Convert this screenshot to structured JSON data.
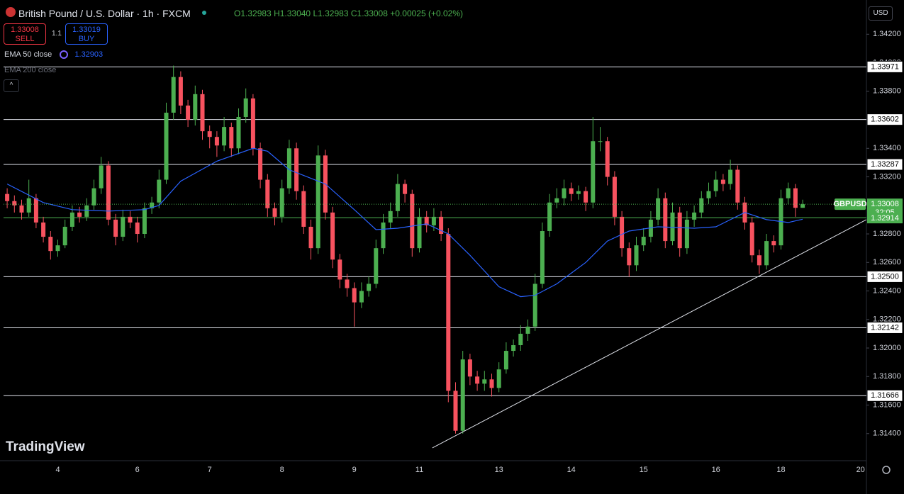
{
  "chart_data": {
    "type": "candlestick",
    "title": "British Pound / U.S. Dollar · 1h · FXCM",
    "ohlc_text": [
      "O1.32983",
      "H1.33040",
      "L1.32983",
      "C1.33008",
      "+0.00025 (+0.02%)"
    ],
    "sell": {
      "price": "1.33008",
      "label": "SELL"
    },
    "spread": "1.1",
    "buy": {
      "price": "1.33019",
      "label": "BUY"
    },
    "currency": "USD",
    "watermark": "TradingView",
    "up_color": "#4caf50",
    "down_color": "#f7525f",
    "categories": [
      null,
      null,
      null,
      null,
      null,
      null,
      null,
      "4",
      null,
      null,
      null,
      null,
      null,
      null,
      null,
      null,
      null,
      null,
      "6",
      null,
      null,
      null,
      null,
      null,
      null,
      null,
      null,
      null,
      "7",
      null,
      null,
      null,
      null,
      null,
      null,
      null,
      null,
      null,
      "8",
      null,
      null,
      null,
      null,
      null,
      null,
      null,
      null,
      null,
      "9",
      null,
      null,
      null,
      null,
      null,
      null,
      null,
      null,
      "11",
      null,
      null,
      null,
      null,
      null,
      null,
      null,
      null,
      null,
      null,
      "13",
      null,
      null,
      null,
      null,
      null,
      null,
      null,
      null,
      null,
      "14",
      null,
      null,
      null,
      null,
      null,
      null,
      null,
      null,
      null,
      "15",
      null,
      null,
      null,
      null,
      null,
      null,
      null,
      null,
      null,
      "16",
      null,
      null,
      null,
      null,
      null,
      null,
      null,
      null,
      "18",
      null,
      null,
      null,
      null,
      null,
      null,
      null,
      null,
      null,
      null,
      "20"
    ],
    "candles": [
      [
        1.3308,
        1.3312,
        1.3298,
        1.3303
      ],
      [
        1.3303,
        1.3307,
        1.3295,
        1.33
      ],
      [
        1.33,
        1.3304,
        1.329,
        1.3295
      ],
      [
        1.3295,
        1.3318,
        1.3292,
        1.3305
      ],
      [
        1.3305,
        1.3308,
        1.3284,
        1.3288
      ],
      [
        1.3288,
        1.3292,
        1.3274,
        1.3278
      ],
      [
        1.3278,
        1.3282,
        1.3262,
        1.3268
      ],
      [
        1.3268,
        1.3276,
        1.3264,
        1.3272
      ],
      [
        1.3272,
        1.329,
        1.327,
        1.3285
      ],
      [
        1.3285,
        1.33,
        1.3282,
        1.3295
      ],
      [
        1.3295,
        1.3299,
        1.3288,
        1.3292
      ],
      [
        1.3292,
        1.3305,
        1.3289,
        1.33
      ],
      [
        1.33,
        1.3318,
        1.3297,
        1.3312
      ],
      [
        1.3312,
        1.3334,
        1.3308,
        1.3328
      ],
      [
        1.3328,
        1.3331,
        1.3286,
        1.329
      ],
      [
        1.329,
        1.3294,
        1.3272,
        1.3278
      ],
      [
        1.3278,
        1.3297,
        1.3275,
        1.3292
      ],
      [
        1.3292,
        1.3296,
        1.3284,
        1.3288
      ],
      [
        1.3288,
        1.3292,
        1.3274,
        1.328
      ],
      [
        1.328,
        1.3302,
        1.3277,
        1.3298
      ],
      [
        1.3298,
        1.3306,
        1.3294,
        1.3302
      ],
      [
        1.3302,
        1.3325,
        1.3298,
        1.3318
      ],
      [
        1.3318,
        1.3372,
        1.3315,
        1.3365
      ],
      [
        1.3365,
        1.3398,
        1.336,
        1.339
      ],
      [
        1.339,
        1.3394,
        1.3364,
        1.337
      ],
      [
        1.337,
        1.3374,
        1.3355,
        1.336
      ],
      [
        1.336,
        1.3384,
        1.3356,
        1.3378
      ],
      [
        1.3378,
        1.3381,
        1.3346,
        1.3352
      ],
      [
        1.3352,
        1.3356,
        1.334,
        1.3348
      ],
      [
        1.3348,
        1.3352,
        1.3334,
        1.3342
      ],
      [
        1.3342,
        1.3362,
        1.3338,
        1.3355
      ],
      [
        1.3355,
        1.3358,
        1.3334,
        1.334
      ],
      [
        1.334,
        1.3368,
        1.3336,
        1.3362
      ],
      [
        1.3362,
        1.3382,
        1.3358,
        1.3375
      ],
      [
        1.3375,
        1.3378,
        1.3335,
        1.334
      ],
      [
        1.334,
        1.3344,
        1.3312,
        1.3318
      ],
      [
        1.3318,
        1.3322,
        1.3292,
        1.3298
      ],
      [
        1.3298,
        1.3302,
        1.3286,
        1.3292
      ],
      [
        1.3292,
        1.3318,
        1.3288,
        1.3312
      ],
      [
        1.3312,
        1.3346,
        1.3308,
        1.334
      ],
      [
        1.334,
        1.3344,
        1.3304,
        1.331
      ],
      [
        1.331,
        1.3314,
        1.328,
        1.3285
      ],
      [
        1.3285,
        1.329,
        1.3262,
        1.327
      ],
      [
        1.327,
        1.3342,
        1.3266,
        1.3335
      ],
      [
        1.3335,
        1.3339,
        1.329,
        1.3295
      ],
      [
        1.3295,
        1.3299,
        1.3256,
        1.3262
      ],
      [
        1.3262,
        1.3266,
        1.3242,
        1.3248
      ],
      [
        1.3248,
        1.3252,
        1.3236,
        1.3242
      ],
      [
        1.3242,
        1.3246,
        1.3215,
        1.3232
      ],
      [
        1.3232,
        1.3246,
        1.3228,
        1.324
      ],
      [
        1.324,
        1.325,
        1.3236,
        1.3245
      ],
      [
        1.3245,
        1.3276,
        1.3242,
        1.327
      ],
      [
        1.327,
        1.3294,
        1.3266,
        1.3288
      ],
      [
        1.3288,
        1.3302,
        1.3284,
        1.3296
      ],
      [
        1.3296,
        1.3322,
        1.3292,
        1.3315
      ],
      [
        1.3315,
        1.3318,
        1.3302,
        1.3308
      ],
      [
        1.3308,
        1.3311,
        1.3264,
        1.327
      ],
      [
        1.327,
        1.3298,
        1.3267,
        1.3292
      ],
      [
        1.3292,
        1.3296,
        1.3281,
        1.3286
      ],
      [
        1.3286,
        1.3298,
        1.3282,
        1.3292
      ],
      [
        1.3292,
        1.3296,
        1.3275,
        1.328
      ],
      [
        1.328,
        1.3284,
        1.3162,
        1.317
      ],
      [
        1.317,
        1.3176,
        1.314,
        1.3142
      ],
      [
        1.3142,
        1.3198,
        1.314,
        1.3192
      ],
      [
        1.3192,
        1.3196,
        1.3174,
        1.318
      ],
      [
        1.318,
        1.3184,
        1.317,
        1.3175
      ],
      [
        1.3175,
        1.3184,
        1.317,
        1.3178
      ],
      [
        1.3178,
        1.3182,
        1.3166,
        1.3172
      ],
      [
        1.3172,
        1.319,
        1.3169,
        1.3185
      ],
      [
        1.3185,
        1.3204,
        1.3182,
        1.3198
      ],
      [
        1.3198,
        1.3206,
        1.3194,
        1.3202
      ],
      [
        1.3202,
        1.3216,
        1.3198,
        1.321
      ],
      [
        1.321,
        1.322,
        1.3205,
        1.3215
      ],
      [
        1.3215,
        1.3252,
        1.3212,
        1.3245
      ],
      [
        1.3245,
        1.3288,
        1.3242,
        1.3282
      ],
      [
        1.3282,
        1.3308,
        1.3278,
        1.3302
      ],
      [
        1.3302,
        1.3312,
        1.3298,
        1.3305
      ],
      [
        1.3305,
        1.3318,
        1.33,
        1.3312
      ],
      [
        1.3312,
        1.3316,
        1.3303,
        1.3308
      ],
      [
        1.3308,
        1.3314,
        1.3304,
        1.331
      ],
      [
        1.331,
        1.3313,
        1.3296,
        1.3302
      ],
      [
        1.3302,
        1.3362,
        1.3298,
        1.3345
      ],
      [
        1.3345,
        1.3355,
        1.3338,
        1.3345
      ],
      [
        1.3345,
        1.3348,
        1.3314,
        1.332
      ],
      [
        1.332,
        1.3324,
        1.3286,
        1.3292
      ],
      [
        1.3292,
        1.3296,
        1.3264,
        1.327
      ],
      [
        1.327,
        1.3274,
        1.325,
        1.3258
      ],
      [
        1.3258,
        1.3278,
        1.3254,
        1.3272
      ],
      [
        1.3272,
        1.3284,
        1.3268,
        1.3278
      ],
      [
        1.3278,
        1.3296,
        1.3274,
        1.329
      ],
      [
        1.329,
        1.3312,
        1.3286,
        1.3305
      ],
      [
        1.3305,
        1.3309,
        1.327,
        1.3275
      ],
      [
        1.3275,
        1.3302,
        1.3272,
        1.3295
      ],
      [
        1.3295,
        1.3299,
        1.3264,
        1.327
      ],
      [
        1.327,
        1.3296,
        1.3266,
        1.329
      ],
      [
        1.329,
        1.33,
        1.3285,
        1.3295
      ],
      [
        1.3295,
        1.331,
        1.3291,
        1.3305
      ],
      [
        1.3305,
        1.3316,
        1.3301,
        1.331
      ],
      [
        1.331,
        1.3324,
        1.3306,
        1.3318
      ],
      [
        1.3318,
        1.3322,
        1.331,
        1.3315
      ],
      [
        1.3315,
        1.3332,
        1.3311,
        1.3325
      ],
      [
        1.3325,
        1.3328,
        1.3297,
        1.3302
      ],
      [
        1.3302,
        1.3306,
        1.3283,
        1.3288
      ],
      [
        1.3288,
        1.3292,
        1.326,
        1.3265
      ],
      [
        1.3265,
        1.3269,
        1.3252,
        1.3258
      ],
      [
        1.3258,
        1.328,
        1.3255,
        1.3275
      ],
      [
        1.3275,
        1.3279,
        1.3267,
        1.3272
      ],
      [
        1.3272,
        1.3311,
        1.3269,
        1.3305
      ],
      [
        1.3305,
        1.3316,
        1.3301,
        1.3312
      ],
      [
        1.3312,
        1.3315,
        1.3292,
        1.32983
      ],
      [
        1.32983,
        1.3304,
        1.32983,
        1.33008
      ],
      null,
      null,
      null,
      null,
      null,
      null,
      null,
      null
    ],
    "series": [
      {
        "name": "EMA 50 close",
        "color": "#2962ff",
        "value_label": "1.32903",
        "x": [
          0,
          5,
          9,
          14,
          19,
          21,
          24,
          29,
          34,
          36,
          39,
          44,
          48,
          51,
          54,
          58,
          61,
          64,
          68,
          71,
          73,
          76,
          80,
          83,
          86,
          90,
          95,
          98,
          102,
          105,
          108,
          110
        ],
        "values": [
          1.3315,
          1.3302,
          1.3297,
          1.3296,
          1.3297,
          1.33,
          1.3317,
          1.3331,
          1.334,
          1.3338,
          1.3325,
          1.3315,
          1.3297,
          1.3283,
          1.3284,
          1.3287,
          1.328,
          1.3265,
          1.3243,
          1.3236,
          1.3237,
          1.3245,
          1.326,
          1.3275,
          1.3282,
          1.3285,
          1.3284,
          1.3285,
          1.3295,
          1.329,
          1.3288,
          1.32903
        ]
      }
    ],
    "hidden_series": [
      "EMA 200 close"
    ],
    "levels": [
      1.33971,
      1.33602,
      1.33287,
      {
        "value": 1.325,
        "label": "1.32500"
      },
      1.32142,
      1.31666
    ],
    "trendline": {
      "x": [
        58.8,
        118.8
      ],
      "values": [
        1.313,
        1.329
      ]
    },
    "symbol": "GBPUSD",
    "last_price": 1.33008,
    "countdown": "32:05",
    "ema_tag": 1.32914,
    "ylim": [
      1.3121,
      1.3444
    ],
    "yticks": [
      {
        "value": 1.314,
        "label": "1.31400"
      },
      {
        "value": 1.316,
        "label": "1.31600"
      },
      {
        "value": 1.318,
        "label": "1.31800"
      },
      {
        "value": 1.32,
        "label": "1.32000"
      },
      {
        "value": 1.322,
        "label": "1.32200"
      },
      {
        "value": 1.324,
        "label": "1.32400"
      },
      {
        "value": 1.326,
        "label": "1.32600"
      },
      {
        "value": 1.328,
        "label": "1.32800"
      },
      {
        "value": 1.33,
        "label": "1.33000"
      },
      {
        "value": 1.332,
        "label": "1.33200"
      },
      {
        "value": 1.334,
        "label": "1.33400"
      },
      {
        "value": 1.336,
        "label": "1.33600"
      },
      {
        "value": 1.338,
        "label": "1.33800"
      },
      {
        "value": 1.34,
        "label": "1.34000"
      },
      {
        "value": 1.342,
        "label": "1.34200"
      }
    ]
  }
}
